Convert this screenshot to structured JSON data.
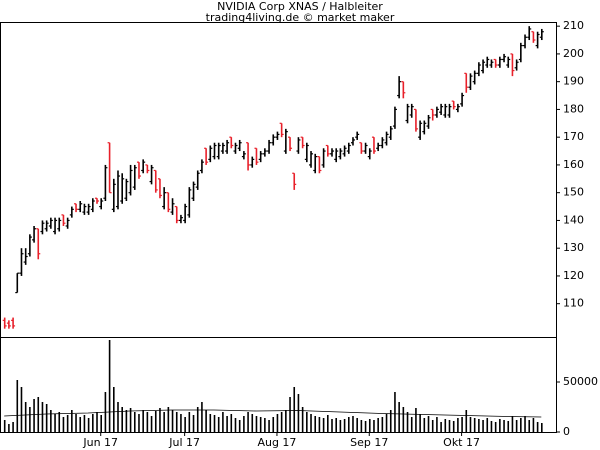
{
  "chart_data": {
    "type": "ohlc",
    "title": "NVIDIA Corp XNAS / Halbleiter",
    "subtitle": "trading4living.de © market maker",
    "up_color": "#000000",
    "down_color": "#e8202a",
    "xlim": [
      -1,
      131.5
    ],
    "xticks": [
      {
        "value": 23,
        "label": "Jun 17"
      },
      {
        "value": 43,
        "label": "Jul 17"
      },
      {
        "value": 65,
        "label": "Aug 17"
      },
      {
        "value": 87,
        "label": "Sep 17"
      },
      {
        "value": 109,
        "label": "Okt 17"
      }
    ],
    "ylim": [
      98,
      211.5
    ],
    "yticks": [
      110,
      120,
      130,
      140,
      150,
      160,
      170,
      180,
      190,
      200,
      210
    ],
    "ohlc": [
      [
        104,
        105,
        101,
        102
      ],
      [
        103,
        104,
        101,
        102
      ],
      [
        104,
        105,
        101,
        102
      ],
      [
        114,
        121,
        114,
        121
      ],
      [
        121,
        130,
        120,
        128
      ],
      [
        125,
        130,
        124,
        127
      ],
      [
        128,
        135,
        127,
        134
      ],
      [
        133,
        138,
        132,
        137
      ],
      [
        137,
        137,
        126,
        128
      ],
      [
        136,
        140,
        135,
        139
      ],
      [
        137,
        140,
        136,
        139
      ],
      [
        138,
        141,
        137,
        140
      ],
      [
        136,
        141,
        135,
        140
      ],
      [
        137,
        141,
        136,
        140
      ],
      [
        142,
        142,
        138,
        139
      ],
      [
        138,
        141,
        137,
        140
      ],
      [
        142,
        145,
        141,
        144
      ],
      [
        146,
        146,
        143,
        144
      ],
      [
        144,
        147,
        143,
        146
      ],
      [
        143,
        146,
        142,
        145
      ],
      [
        143,
        146,
        142,
        145
      ],
      [
        144,
        148,
        143,
        147
      ],
      [
        148,
        148,
        146,
        147
      ],
      [
        145,
        148,
        144,
        147
      ],
      [
        148,
        160,
        147,
        159
      ],
      [
        168,
        168,
        150,
        150
      ],
      [
        144,
        155,
        143,
        153
      ],
      [
        145,
        158,
        144,
        156
      ],
      [
        147,
        157,
        146,
        155
      ],
      [
        148,
        155,
        147,
        154
      ],
      [
        150,
        160,
        149,
        158
      ],
      [
        152,
        160,
        151,
        159
      ],
      [
        161,
        161,
        155,
        156
      ],
      [
        158,
        162,
        157,
        161
      ],
      [
        160,
        160,
        157,
        158
      ],
      [
        154,
        160,
        153,
        159
      ],
      [
        158,
        158,
        150,
        151
      ],
      [
        155,
        155,
        148,
        149
      ],
      [
        145,
        152,
        144,
        150
      ],
      [
        150,
        150,
        143,
        144
      ],
      [
        143,
        148,
        142,
        146
      ],
      [
        145,
        145,
        139,
        140
      ],
      [
        140,
        142,
        139,
        141
      ],
      [
        140,
        146,
        139,
        145
      ],
      [
        142,
        152,
        141,
        151
      ],
      [
        148,
        154,
        147,
        153
      ],
      [
        152,
        158,
        151,
        157
      ],
      [
        158,
        162,
        157,
        161
      ],
      [
        166,
        166,
        160,
        161
      ],
      [
        162,
        167,
        161,
        166
      ],
      [
        163,
        168,
        162,
        167
      ],
      [
        163,
        168,
        162,
        167
      ],
      [
        165,
        168,
        164,
        167
      ],
      [
        165,
        169,
        164,
        168
      ],
      [
        170,
        170,
        166,
        167
      ],
      [
        165,
        168,
        164,
        167
      ],
      [
        166,
        169,
        165,
        168
      ],
      [
        163,
        165,
        162,
        164
      ],
      [
        168,
        168,
        158,
        160
      ],
      [
        160,
        163,
        159,
        162
      ],
      [
        166,
        166,
        160,
        161
      ],
      [
        162,
        165,
        161,
        164
      ],
      [
        164,
        166,
        163,
        165
      ],
      [
        165,
        169,
        164,
        168
      ],
      [
        168,
        171,
        167,
        170
      ],
      [
        170,
        172,
        169,
        171
      ],
      [
        175,
        175,
        170,
        171
      ],
      [
        165,
        173,
        164,
        172
      ],
      [
        170,
        170,
        165,
        166
      ],
      [
        157,
        157,
        151,
        153
      ],
      [
        165,
        170,
        164,
        169
      ],
      [
        170,
        170,
        166,
        167
      ],
      [
        162,
        168,
        161,
        167
      ],
      [
        160,
        165,
        159,
        164
      ],
      [
        158,
        164,
        157,
        163
      ],
      [
        163,
        163,
        157,
        158
      ],
      [
        160,
        166,
        159,
        165
      ],
      [
        167,
        167,
        163,
        164
      ],
      [
        164,
        166,
        163,
        165
      ],
      [
        162,
        166,
        161,
        165
      ],
      [
        163,
        166,
        162,
        165
      ],
      [
        164,
        167,
        163,
        166
      ],
      [
        165,
        168,
        164,
        167
      ],
      [
        168,
        170,
        167,
        169
      ],
      [
        170,
        172,
        169,
        171
      ],
      [
        168,
        168,
        164,
        165
      ],
      [
        165,
        168,
        164,
        167
      ],
      [
        163,
        166,
        162,
        165
      ],
      [
        170,
        170,
        164,
        165
      ],
      [
        166,
        168,
        165,
        167
      ],
      [
        167,
        170,
        166,
        169
      ],
      [
        168,
        172,
        167,
        171
      ],
      [
        170,
        174,
        169,
        173
      ],
      [
        174,
        181,
        173,
        180
      ],
      [
        185,
        192,
        184,
        190
      ],
      [
        190,
        190,
        184,
        186
      ],
      [
        176,
        182,
        175,
        181
      ],
      [
        178,
        182,
        177,
        181
      ],
      [
        180,
        180,
        172,
        173
      ],
      [
        170,
        176,
        169,
        175
      ],
      [
        172,
        176,
        171,
        175
      ],
      [
        174,
        178,
        173,
        177
      ],
      [
        180,
        180,
        176,
        178
      ],
      [
        178,
        181,
        177,
        180
      ],
      [
        179,
        182,
        178,
        181
      ],
      [
        178,
        182,
        177,
        181
      ],
      [
        178,
        182,
        177,
        181
      ],
      [
        183,
        183,
        180,
        181
      ],
      [
        180,
        182,
        179,
        181
      ],
      [
        182,
        186,
        181,
        185
      ],
      [
        193,
        193,
        186,
        188
      ],
      [
        188,
        193,
        187,
        192
      ],
      [
        190,
        194,
        189,
        193
      ],
      [
        193,
        197,
        192,
        196
      ],
      [
        194,
        198,
        193,
        197
      ],
      [
        196,
        199,
        195,
        198
      ],
      [
        196,
        198,
        195,
        197
      ],
      [
        198,
        198,
        195,
        196
      ],
      [
        196,
        199,
        195,
        198
      ],
      [
        198,
        200,
        197,
        199
      ],
      [
        196,
        199,
        195,
        198
      ],
      [
        200,
        200,
        192,
        194
      ],
      [
        195,
        198,
        194,
        197
      ],
      [
        198,
        204,
        197,
        203
      ],
      [
        203,
        207,
        202,
        206
      ],
      [
        206,
        210,
        205,
        209
      ],
      [
        208,
        208,
        204,
        205
      ],
      [
        203,
        208,
        202,
        207
      ],
      [
        206,
        209,
        205,
        208
      ]
    ],
    "volume": {
      "color": "#000000",
      "ma_color": "#000000",
      "ylim": [
        0,
        94000
      ],
      "yticks": [
        0,
        50000
      ],
      "values": [
        12000,
        8000,
        10000,
        52000,
        45000,
        30000,
        25000,
        33000,
        35000,
        30000,
        28000,
        22000,
        18000,
        20000,
        15000,
        17000,
        22000,
        18000,
        15000,
        17000,
        14000,
        18000,
        20000,
        17000,
        40000,
        92000,
        45000,
        30000,
        25000,
        22000,
        24000,
        20000,
        18000,
        22000,
        20000,
        16000,
        21000,
        24000,
        20000,
        25000,
        22000,
        20000,
        18000,
        15000,
        20000,
        17000,
        25000,
        30000,
        22000,
        18000,
        17000,
        15000,
        20000,
        16000,
        18000,
        14000,
        12000,
        16000,
        20000,
        18000,
        16000,
        15000,
        14000,
        12000,
        15000,
        18000,
        20000,
        22000,
        35000,
        45000,
        38000,
        25000,
        20000,
        18000,
        16000,
        15000,
        14000,
        17000,
        13000,
        14000,
        12000,
        13000,
        15000,
        16000,
        14000,
        12000,
        11000,
        13000,
        12000,
        14000,
        15000,
        18000,
        22000,
        40000,
        30000,
        25000,
        20000,
        15000,
        24000,
        18000,
        14000,
        16000,
        12000,
        15000,
        10000,
        13000,
        12000,
        11000,
        14000,
        15000,
        22000,
        15000,
        14000,
        13000,
        12000,
        14000,
        11000,
        10000,
        13000,
        12000,
        11000,
        16000,
        12000,
        14000,
        16000,
        12000,
        14000,
        10000,
        9000
      ],
      "ma": {
        "x": [
          0,
          10,
          20,
          30,
          40,
          50,
          60,
          70,
          80,
          90,
          100,
          110,
          120,
          128
        ],
        "values": [
          16000,
          18000,
          19000,
          21000,
          22000,
          22000,
          21000,
          21500,
          20000,
          18500,
          17500,
          16500,
          15500,
          15000
        ]
      }
    }
  }
}
